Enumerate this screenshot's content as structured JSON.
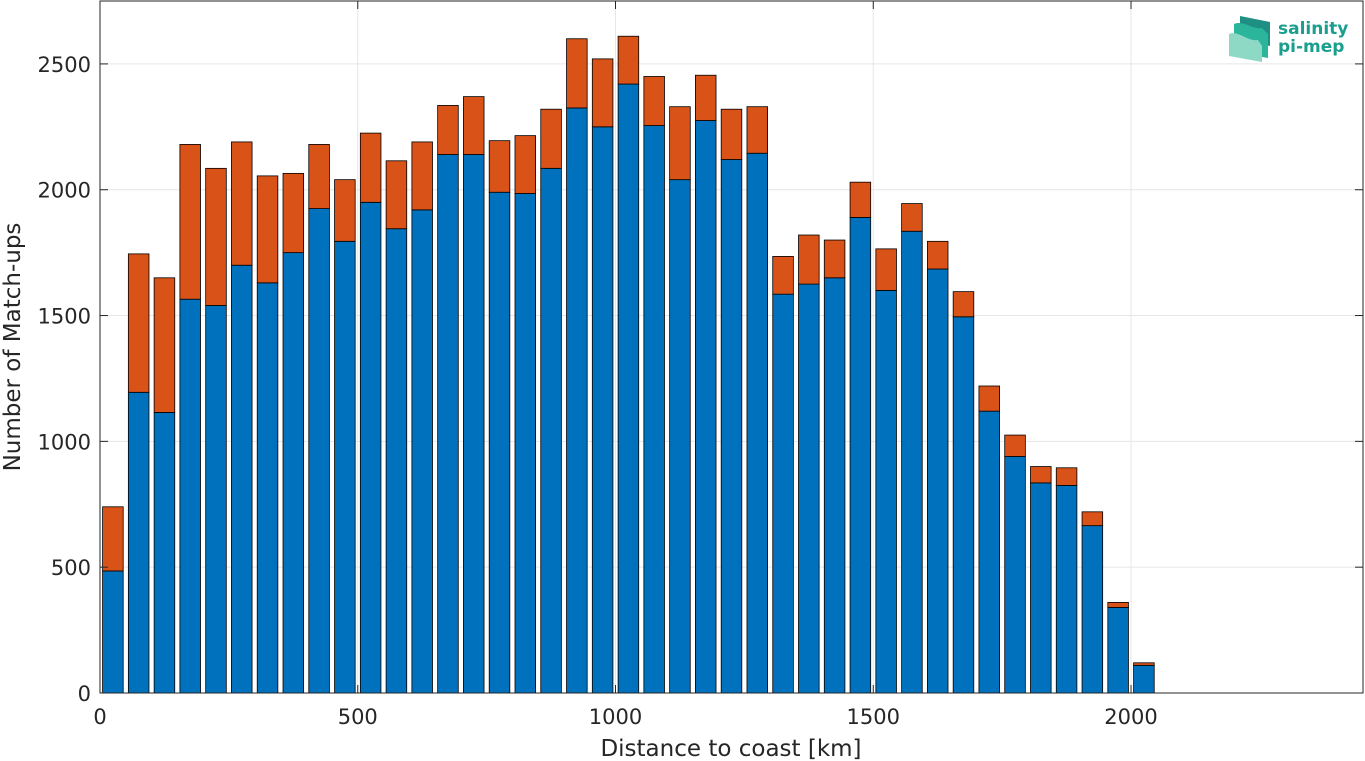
{
  "chart_data": {
    "type": "bar",
    "stacked": true,
    "xlabel": "Distance to coast [km]",
    "ylabel": "Number of Match-ups",
    "xlim": [
      0,
      2450
    ],
    "ylim": [
      0,
      2750
    ],
    "xticks": [
      0,
      500,
      1000,
      1500,
      2000
    ],
    "yticks": [
      0,
      500,
      1000,
      1500,
      2000,
      2500
    ],
    "grid": true,
    "bin_width": 50,
    "x": [
      25,
      75,
      125,
      175,
      225,
      275,
      325,
      375,
      425,
      475,
      525,
      575,
      625,
      675,
      725,
      775,
      825,
      875,
      925,
      975,
      1025,
      1075,
      1125,
      1175,
      1225,
      1275,
      1325,
      1375,
      1425,
      1475,
      1525,
      1575,
      1625,
      1675,
      1725,
      1775,
      1825,
      1875,
      1925,
      1975,
      2025
    ],
    "series": [
      {
        "color": "#0072bd",
        "values": [
          485,
          1195,
          1115,
          1565,
          1540,
          1700,
          1630,
          1750,
          1925,
          1795,
          1950,
          1845,
          1920,
          2140,
          2140,
          1990,
          1985,
          2085,
          2325,
          2250,
          2420,
          2255,
          2040,
          2275,
          2120,
          2145,
          1585,
          1625,
          1650,
          1890,
          1600,
          1835,
          1685,
          1495,
          1120,
          940,
          835,
          825,
          665,
          340,
          110
        ]
      },
      {
        "color": "#d95319",
        "values": [
          255,
          550,
          535,
          615,
          545,
          490,
          425,
          315,
          255,
          245,
          275,
          270,
          270,
          195,
          230,
          205,
          230,
          235,
          275,
          270,
          190,
          195,
          290,
          180,
          200,
          185,
          150,
          195,
          150,
          140,
          165,
          110,
          110,
          100,
          100,
          85,
          65,
          70,
          55,
          20,
          10
        ]
      }
    ]
  },
  "logo": {
    "line1": "salinity",
    "line2": "pi-mep",
    "colors": [
      "#2bb59a",
      "#58c9b1",
      "#8ed9c6",
      "#1f8f84"
    ]
  }
}
